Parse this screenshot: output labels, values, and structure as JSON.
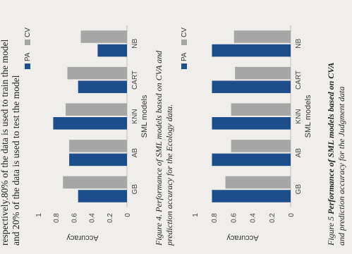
{
  "body_text": {
    "line1": "respectively.80% of the data is used to train the model",
    "line2": "and 20% of the data is used to test the model"
  },
  "captions": {
    "fig4_line1": "Figure 4. Performance of SML models based on CVA and",
    "fig4_line2": "prediction accuracy for the Ecology data.",
    "fig5_prefix": "Figure 5 ",
    "fig5_line1": "Performance of SML models based on CVA",
    "fig5_line2": "and prediction accuracy for the Judgment data"
  },
  "colors": {
    "PA": "#1f4e8c",
    "CV": "#a6a6a6"
  },
  "chart_data": [
    {
      "type": "bar",
      "categories": [
        "GB",
        "AB",
        "KNN",
        "CART",
        "NB"
      ],
      "series": [
        {
          "name": "PA",
          "values": [
            0.55,
            0.65,
            0.83,
            0.55,
            0.33
          ]
        },
        {
          "name": "CV",
          "values": [
            0.72,
            0.65,
            0.69,
            0.67,
            0.52
          ]
        }
      ],
      "xlabel": "SML models",
      "ylabel": "Accuracy",
      "ylim": [
        0,
        1
      ],
      "ticks": [
        "0",
        "0.2",
        "0.4",
        "0.6",
        "0.8",
        "1"
      ],
      "grid": false,
      "legend": "top-right"
    },
    {
      "type": "bar",
      "categories": [
        "GB",
        "AB",
        "KNN",
        "CART",
        "NB"
      ],
      "series": [
        {
          "name": "PA",
          "values": [
            0.82,
            0.82,
            0.82,
            0.82,
            0.82
          ]
        },
        {
          "name": "CV",
          "values": [
            0.68,
            0.62,
            0.62,
            0.58,
            0.59
          ]
        }
      ],
      "xlabel": "SML models",
      "ylabel": "Accuracy",
      "ylim": [
        0,
        1
      ],
      "ticks": [
        "0",
        "0.2",
        "0.4",
        "0.6",
        "0.8",
        "1"
      ],
      "grid": false,
      "legend": "top-right"
    }
  ]
}
